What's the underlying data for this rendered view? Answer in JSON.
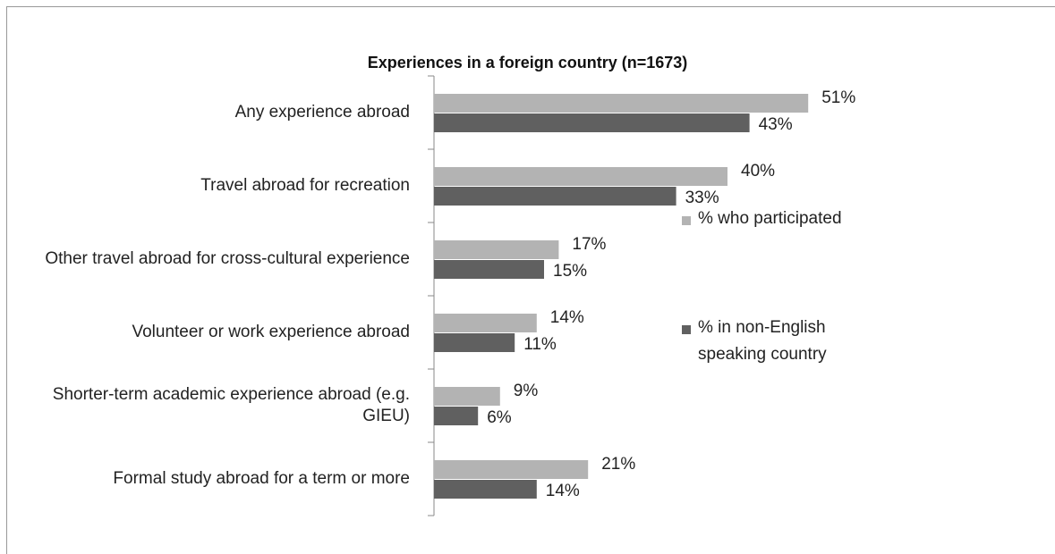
{
  "chart_data": {
    "type": "hbar",
    "title": "Experiences in a foreign country (n=1673)",
    "categories": [
      "Any experience abroad",
      "Travel abroad for recreation",
      "Other travel abroad for cross-cultural experience",
      "Volunteer or work experience abroad",
      "Shorter-term academic experience abroad (e.g. GIEU)",
      "Formal study abroad for a term or more"
    ],
    "series": [
      {
        "name": "% who participated",
        "color": "#b3b3b3",
        "values": [
          51,
          40,
          17,
          14,
          9,
          21
        ],
        "value_labels": [
          "51%",
          "40%",
          "17%",
          "14%",
          "9%",
          "21%"
        ]
      },
      {
        "name": "% in non-English speaking country",
        "color": "#606060",
        "values": [
          43,
          33,
          15,
          11,
          6,
          14
        ],
        "value_labels": [
          "43%",
          "33%",
          "15%",
          "11%",
          "6%",
          "14%"
        ]
      }
    ],
    "legend": "right"
  }
}
